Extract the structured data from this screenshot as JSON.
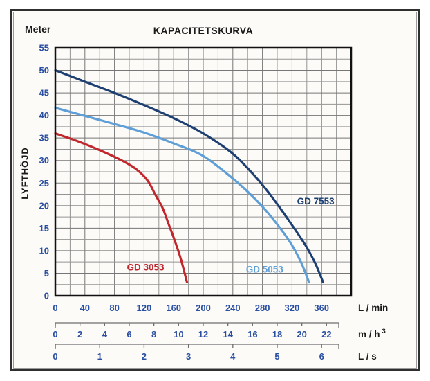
{
  "chart_data": {
    "type": "line",
    "title": "KAPACITETSKURVA",
    "y_axis": {
      "unit": "Meter",
      "label": "LYFTHÖJD",
      "min": 0,
      "max": 55,
      "grid_step": 2.5,
      "ticks": [
        0,
        5,
        10,
        15,
        20,
        25,
        30,
        35,
        40,
        45,
        50,
        55
      ]
    },
    "x_axes": [
      {
        "unit": "L / min",
        "min": 0,
        "max": 400,
        "grid_step": 20,
        "ticks": [
          0,
          40,
          80,
          120,
          160,
          200,
          240,
          280,
          320,
          360
        ],
        "lmin_per_unit": 1
      },
      {
        "unit": "m / h",
        "unit_sup": "3",
        "ticks": [
          0,
          2,
          4,
          6,
          8,
          10,
          12,
          14,
          16,
          18,
          20,
          22
        ],
        "lmin_per_unit": 16.6667
      },
      {
        "unit": "L / s",
        "ticks": [
          0,
          1,
          2,
          3,
          4,
          5,
          6
        ],
        "lmin_per_unit": 60
      }
    ],
    "series": [
      {
        "name": "GD 7553",
        "color": "#1d3f72",
        "label_pos": [
          352,
          21
        ],
        "points": [
          [
            0,
            50
          ],
          [
            40,
            47.5
          ],
          [
            80,
            45
          ],
          [
            120,
            42.3
          ],
          [
            160,
            39.4
          ],
          [
            200,
            36
          ],
          [
            240,
            31.5
          ],
          [
            270,
            26.5
          ],
          [
            292,
            22.1
          ],
          [
            317,
            16.4
          ],
          [
            339,
            11
          ],
          [
            352,
            7
          ],
          [
            362,
            3
          ]
        ]
      },
      {
        "name": "GD 5053",
        "color": "#5f9fd8",
        "label_pos": [
          283,
          5.8
        ],
        "points": [
          [
            0,
            41.7
          ],
          [
            40,
            39.9
          ],
          [
            80,
            38.1
          ],
          [
            120,
            36.2
          ],
          [
            160,
            33.8
          ],
          [
            200,
            31
          ],
          [
            240,
            26
          ],
          [
            270,
            21.5
          ],
          [
            292,
            17.5
          ],
          [
            317,
            12
          ],
          [
            332,
            7.5
          ],
          [
            343,
            3
          ]
        ]
      },
      {
        "name": "GD 3053",
        "color": "#c1272d",
        "label_pos": [
          122,
          6.3
        ],
        "points": [
          [
            0,
            36
          ],
          [
            30,
            34.3
          ],
          [
            60,
            32.3
          ],
          [
            90,
            30
          ],
          [
            110,
            28
          ],
          [
            125,
            25.5
          ],
          [
            135,
            22.5
          ],
          [
            145,
            19.5
          ],
          [
            153,
            16
          ],
          [
            162,
            12
          ],
          [
            170,
            8
          ],
          [
            178,
            3
          ]
        ]
      }
    ],
    "colors": {
      "axis_text": "#2a4fa2",
      "grid_minor": "#949494",
      "grid_major": "#767676",
      "plot_border": "#111111",
      "ruler": "#6e6e6e",
      "title_text": "#1a1a1a",
      "frame_border": "#2f2f2f"
    },
    "legend_position": "on-curve",
    "grid": true
  }
}
